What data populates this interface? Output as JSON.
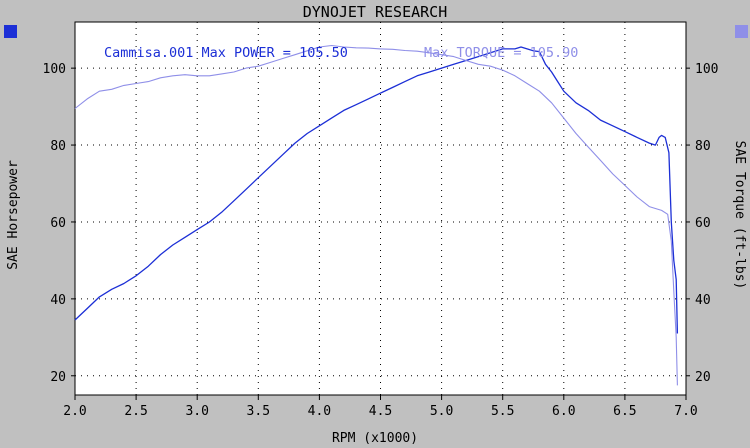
{
  "header": {
    "title": "DYNOJET RESEARCH"
  },
  "colors": {
    "background": "#c0c0c0",
    "plot_background": "#ffffff",
    "power_series": "#1c2fd6",
    "torque_series": "#8f8fe8",
    "grid": "#000000",
    "text": "#000000"
  },
  "legend": {
    "power_text": "Cammisa.001 Max POWER = 105.50",
    "torque_text": "Max TORQUE = 105.90"
  },
  "chart_data": {
    "type": "line",
    "title": "DYNOJET RESEARCH",
    "xlabel": "RPM (x1000)",
    "ylabel_left": "SAE Horsepower",
    "ylabel_right": "SAE Torque (ft-lbs)",
    "xlim": [
      2.0,
      7.0
    ],
    "ylim": [
      15,
      112
    ],
    "x_ticks": [
      "2.0",
      "2.5",
      "3.0",
      "3.5",
      "4.0",
      "4.5",
      "5.0",
      "5.5",
      "6.0",
      "6.5",
      "7.0"
    ],
    "y_ticks_left": [
      "20",
      "40",
      "60",
      "80",
      "100"
    ],
    "y_ticks_right": [
      "20",
      "40",
      "60",
      "80",
      "100"
    ],
    "grid": true,
    "series": [
      {
        "axis": "left",
        "color": "#1c2fd6",
        "x": [
          2.0,
          2.1,
          2.2,
          2.3,
          2.4,
          2.5,
          2.6,
          2.7,
          2.8,
          2.9,
          3.0,
          3.1,
          3.2,
          3.3,
          3.4,
          3.5,
          3.6,
          3.7,
          3.8,
          3.9,
          4.0,
          4.1,
          4.2,
          4.3,
          4.4,
          4.5,
          4.6,
          4.7,
          4.8,
          4.9,
          5.0,
          5.1,
          5.2,
          5.3,
          5.4,
          5.5,
          5.6,
          5.65,
          5.7,
          5.75,
          5.8,
          5.85,
          5.9,
          5.95,
          6.0,
          6.1,
          6.2,
          6.3,
          6.4,
          6.5,
          6.6,
          6.7,
          6.75,
          6.78,
          6.8,
          6.83,
          6.86,
          6.88,
          6.9,
          6.92,
          6.93
        ],
        "values": [
          34.5,
          37.5,
          40.5,
          42.5,
          44.0,
          46.0,
          48.5,
          51.5,
          54.0,
          56.0,
          58.0,
          60.0,
          62.5,
          65.5,
          68.5,
          71.5,
          74.5,
          77.5,
          80.5,
          83.0,
          85.0,
          87.0,
          89.0,
          90.5,
          92.0,
          93.5,
          95.0,
          96.5,
          98.0,
          99.0,
          100.0,
          101.0,
          102.0,
          103.0,
          104.0,
          105.0,
          105.0,
          105.5,
          105.0,
          104.5,
          104.3,
          101.0,
          99.0,
          96.5,
          94.0,
          91.0,
          89.0,
          86.5,
          85.0,
          83.5,
          82.0,
          80.5,
          80.0,
          82.0,
          82.5,
          82.0,
          78.0,
          60.0,
          50.0,
          45.0,
          31.0
        ]
      },
      {
        "axis": "right",
        "color": "#8f8fe8",
        "x": [
          2.0,
          2.1,
          2.2,
          2.3,
          2.4,
          2.5,
          2.6,
          2.7,
          2.8,
          2.9,
          3.0,
          3.1,
          3.2,
          3.3,
          3.4,
          3.5,
          3.6,
          3.7,
          3.8,
          3.9,
          4.0,
          4.1,
          4.2,
          4.3,
          4.4,
          4.5,
          4.6,
          4.7,
          4.8,
          4.9,
          5.0,
          5.1,
          5.2,
          5.3,
          5.4,
          5.5,
          5.6,
          5.7,
          5.8,
          5.9,
          6.0,
          6.1,
          6.2,
          6.3,
          6.4,
          6.5,
          6.6,
          6.7,
          6.75,
          6.8,
          6.85,
          6.88,
          6.9,
          6.92,
          6.93
        ],
        "values": [
          89.5,
          92.0,
          94.0,
          94.5,
          95.5,
          96.0,
          96.5,
          97.5,
          98.0,
          98.3,
          98.0,
          98.0,
          98.5,
          99.0,
          100.0,
          100.5,
          101.5,
          102.5,
          103.5,
          104.5,
          105.5,
          105.9,
          105.5,
          105.3,
          105.2,
          105.0,
          104.9,
          104.6,
          104.4,
          104.0,
          103.5,
          103.0,
          102.0,
          101.0,
          100.5,
          99.5,
          98.0,
          96.0,
          94.0,
          91.0,
          87.0,
          83.0,
          79.5,
          76.0,
          72.5,
          69.5,
          66.5,
          64.0,
          63.5,
          63.0,
          62.0,
          55.0,
          42.0,
          30.0,
          17.5
        ]
      }
    ]
  }
}
